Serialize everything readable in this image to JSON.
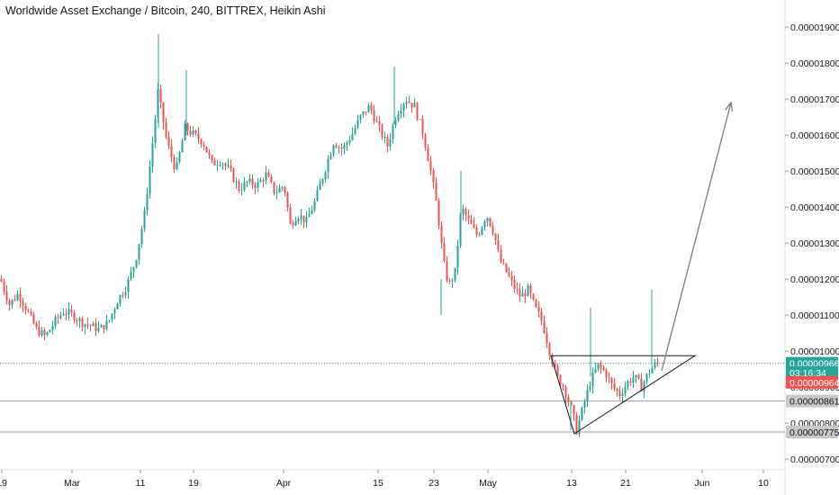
{
  "chart_data": {
    "type": "candlestick",
    "title": "Worldwide Asset Exchange / Bitcoin, 240, BITTREX, Heikin Ashi",
    "y_ticks": [
      "0.00001900",
      "0.00001800",
      "0.00001700",
      "0.00001600",
      "0.00001500",
      "0.00001400",
      "0.00001300",
      "0.00001200",
      "0.00001100",
      "0.00001000",
      "0.00000900",
      "0.00000800",
      "0.00000700"
    ],
    "y_tick_values": [
      1.9e-05,
      1.8e-05,
      1.7e-05,
      1.6e-05,
      1.5e-05,
      1.4e-05,
      1.3e-05,
      1.2e-05,
      1.1e-05,
      1e-05,
      9e-06,
      8e-06,
      7e-06
    ],
    "x_labels": [
      "19",
      "Mar",
      "11",
      "19",
      "Apr",
      "15",
      "23",
      "May",
      "13",
      "21",
      "Jun",
      "10"
    ],
    "ylim": [
      6.75e-06,
      1.93e-05
    ],
    "price_tags": [
      {
        "label": "0.00000966",
        "value": 9.66e-06,
        "color": "#26a69a"
      },
      {
        "label": "03:16:34",
        "value": 9.4e-06,
        "color": "#26a69a"
      },
      {
        "label": "0.00000964",
        "value": 9.13e-06,
        "color": "#ef5350"
      },
      {
        "label": "0.00000861",
        "value": 8.61e-06,
        "color": "#c8c8c8"
      },
      {
        "label": "0.00000775",
        "value": 7.75e-06,
        "color": "#c8c8c8"
      }
    ],
    "horizontal_lines": [
      {
        "value": 9.66e-06,
        "style": "dotted",
        "color": "#26a69a"
      },
      {
        "value": 8.61e-06,
        "style": "solid",
        "color": "#9e9e9e"
      },
      {
        "value": 7.75e-06,
        "style": "solid",
        "color": "#9e9e9e"
      }
    ],
    "colors": {
      "up": "#26a69a",
      "down": "#ef5350",
      "arrow": "#7b7b7b",
      "triangle": "#131722"
    },
    "price_path": [
      [
        0,
        1.2e-05
      ],
      [
        10,
        1.13e-05
      ],
      [
        20,
        1.16e-05
      ],
      [
        30,
        1.11e-05
      ],
      [
        40,
        1.06e-05
      ],
      [
        50,
        1.04e-05
      ],
      [
        60,
        1.08e-05
      ],
      [
        70,
        1.11e-05
      ],
      [
        80,
        1.1e-05
      ],
      [
        90,
        1.08e-05
      ],
      [
        100,
        1.07e-05
      ],
      [
        110,
        1.06e-05
      ],
      [
        120,
        1.08e-05
      ],
      [
        130,
        1.14e-05
      ],
      [
        140,
        1.18e-05
      ],
      [
        150,
        1.25e-05
      ],
      [
        160,
        1.38e-05
      ],
      [
        170,
        1.6e-05
      ],
      [
        175,
        1.72e-05
      ],
      [
        185,
        1.58e-05
      ],
      [
        195,
        1.5e-05
      ],
      [
        205,
        1.62e-05
      ],
      [
        215,
        1.6e-05
      ],
      [
        225,
        1.58e-05
      ],
      [
        235,
        1.52e-05
      ],
      [
        245,
        1.53e-05
      ],
      [
        255,
        1.5e-05
      ],
      [
        265,
        1.45e-05
      ],
      [
        275,
        1.47e-05
      ],
      [
        285,
        1.46e-05
      ],
      [
        295,
        1.49e-05
      ],
      [
        305,
        1.44e-05
      ],
      [
        315,
        1.46e-05
      ],
      [
        322,
        1.35e-05
      ],
      [
        330,
        1.38e-05
      ],
      [
        340,
        1.36e-05
      ],
      [
        350,
        1.42e-05
      ],
      [
        360,
        1.5e-05
      ],
      [
        370,
        1.58e-05
      ],
      [
        380,
        1.56e-05
      ],
      [
        390,
        1.6e-05
      ],
      [
        400,
        1.65e-05
      ],
      [
        410,
        1.68e-05
      ],
      [
        420,
        1.62e-05
      ],
      [
        430,
        1.57e-05
      ],
      [
        440,
        1.66e-05
      ],
      [
        450,
        1.7e-05
      ],
      [
        460,
        1.68e-05
      ],
      [
        470,
        1.6e-05
      ],
      [
        478,
        1.5e-05
      ],
      [
        485,
        1.4e-05
      ],
      [
        492,
        1.25e-05
      ],
      [
        498,
        1.18e-05
      ],
      [
        505,
        1.22e-05
      ],
      [
        512,
        1.4e-05
      ],
      [
        520,
        1.36e-05
      ],
      [
        530,
        1.32e-05
      ],
      [
        540,
        1.38e-05
      ],
      [
        548,
        1.33e-05
      ],
      [
        555,
        1.25e-05
      ],
      [
        562,
        1.22e-05
      ],
      [
        570,
        1.18e-05
      ],
      [
        578,
        1.15e-05
      ],
      [
        586,
        1.17e-05
      ],
      [
        594,
        1.12e-05
      ],
      [
        602,
        1.08e-05
      ],
      [
        610,
        1e-05
      ],
      [
        618,
        9.3e-06
      ],
      [
        626,
        9e-06
      ],
      [
        634,
        8.4e-06
      ],
      [
        640,
        7.8e-06
      ],
      [
        648,
        8.5e-06
      ],
      [
        656,
        9.2e-06
      ],
      [
        664,
        9.6e-06
      ],
      [
        672,
        9.4e-06
      ],
      [
        680,
        9e-06
      ],
      [
        688,
        8.8e-06
      ],
      [
        696,
        9.1e-06
      ],
      [
        704,
        9.3e-06
      ],
      [
        712,
        9e-06
      ],
      [
        720,
        9.4e-06
      ],
      [
        726,
        9.6e-06
      ],
      [
        732,
        9.7e-06
      ]
    ],
    "candle_spacing": 3
  }
}
